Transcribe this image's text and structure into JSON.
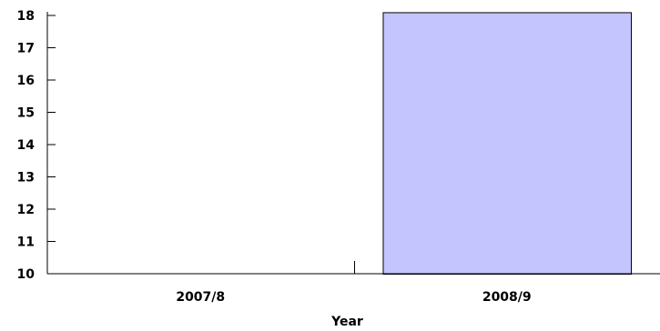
{
  "chart_data": {
    "type": "bar",
    "categories": [
      "2007/8",
      "2008/9"
    ],
    "values": [
      null,
      18.1
    ],
    "xlabel": "Year",
    "ylabel": "",
    "ylim": [
      10,
      18
    ],
    "yticks": [
      10,
      11,
      12,
      13,
      14,
      15,
      16,
      17,
      18
    ],
    "bar_color": "#c4c5ff",
    "bar_edge_color": "#000000",
    "grid": false
  }
}
